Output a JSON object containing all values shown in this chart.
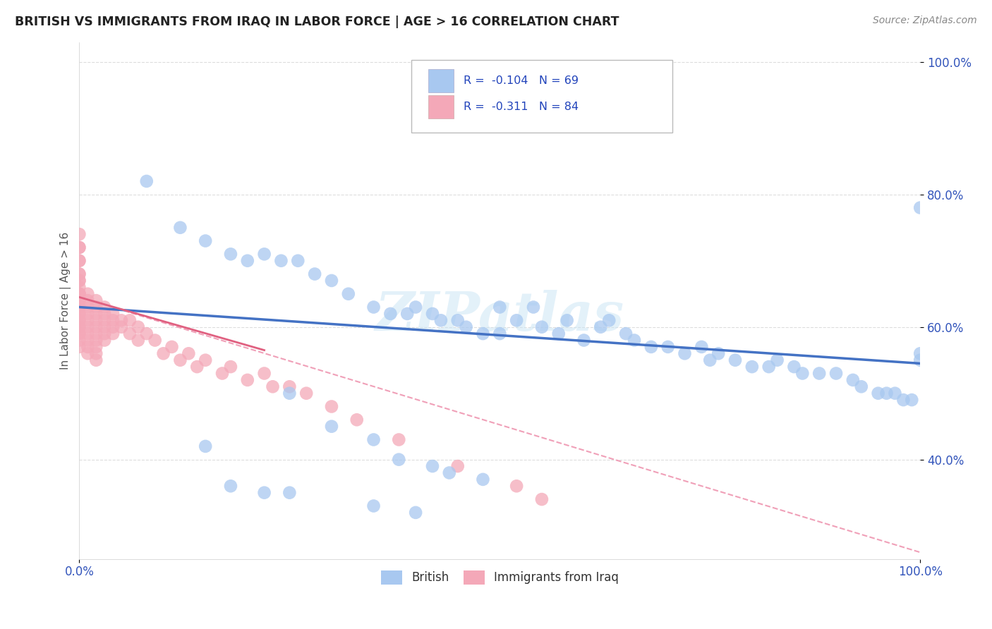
{
  "title": "BRITISH VS IMMIGRANTS FROM IRAQ IN LABOR FORCE | AGE > 16 CORRELATION CHART",
  "source_text": "Source: ZipAtlas.com",
  "ylabel": "In Labor Force | Age > 16",
  "xlim": [
    0.0,
    1.0
  ],
  "ylim": [
    0.25,
    1.03
  ],
  "color_british": "#a8c8f0",
  "color_iraq": "#f4a8b8",
  "color_line_british": "#4472c4",
  "color_line_iraq": "#e06080",
  "color_line_dashed": "#f0a0b8",
  "watermark": "ZIPatlas",
  "background_color": "#ffffff",
  "grid_color": "#dddddd",
  "british_line_x": [
    0.0,
    1.0
  ],
  "british_line_y": [
    0.63,
    0.545
  ],
  "iraq_line_x": [
    0.0,
    0.22
  ],
  "iraq_line_y": [
    0.645,
    0.565
  ],
  "dashed_line_x": [
    0.0,
    1.0
  ],
  "dashed_line_y": [
    0.645,
    0.26
  ],
  "british_scatter_x": [
    0.08,
    0.12,
    0.15,
    0.18,
    0.2,
    0.22,
    0.24,
    0.26,
    0.28,
    0.3,
    0.32,
    0.35,
    0.37,
    0.39,
    0.4,
    0.42,
    0.43,
    0.45,
    0.46,
    0.48,
    0.5,
    0.5,
    0.52,
    0.54,
    0.55,
    0.57,
    0.58,
    0.6,
    0.62,
    0.63,
    0.65,
    0.66,
    0.68,
    0.7,
    0.72,
    0.74,
    0.75,
    0.76,
    0.78,
    0.8,
    0.82,
    0.83,
    0.85,
    0.86,
    0.88,
    0.9,
    0.92,
    0.93,
    0.95,
    0.96,
    0.97,
    0.98,
    0.99,
    1.0,
    1.0,
    1.0,
    0.25,
    0.3,
    0.35,
    0.15,
    0.38,
    0.42,
    0.44,
    0.48,
    0.18,
    0.22,
    0.25,
    0.35,
    0.4
  ],
  "british_scatter_y": [
    0.82,
    0.75,
    0.73,
    0.71,
    0.7,
    0.71,
    0.7,
    0.7,
    0.68,
    0.67,
    0.65,
    0.63,
    0.62,
    0.62,
    0.63,
    0.62,
    0.61,
    0.61,
    0.6,
    0.59,
    0.59,
    0.63,
    0.61,
    0.63,
    0.6,
    0.59,
    0.61,
    0.58,
    0.6,
    0.61,
    0.59,
    0.58,
    0.57,
    0.57,
    0.56,
    0.57,
    0.55,
    0.56,
    0.55,
    0.54,
    0.54,
    0.55,
    0.54,
    0.53,
    0.53,
    0.53,
    0.52,
    0.51,
    0.5,
    0.5,
    0.5,
    0.49,
    0.49,
    0.56,
    0.78,
    0.55,
    0.5,
    0.45,
    0.43,
    0.42,
    0.4,
    0.39,
    0.38,
    0.37,
    0.36,
    0.35,
    0.35,
    0.33,
    0.32
  ],
  "iraq_scatter_x": [
    0.0,
    0.0,
    0.0,
    0.0,
    0.0,
    0.0,
    0.0,
    0.0,
    0.0,
    0.0,
    0.0,
    0.0,
    0.0,
    0.0,
    0.0,
    0.0,
    0.0,
    0.0,
    0.0,
    0.0,
    0.0,
    0.0,
    0.0,
    0.0,
    0.0,
    0.0,
    0.0,
    0.01,
    0.01,
    0.01,
    0.01,
    0.01,
    0.01,
    0.01,
    0.01,
    0.01,
    0.01,
    0.02,
    0.02,
    0.02,
    0.02,
    0.02,
    0.02,
    0.02,
    0.02,
    0.02,
    0.02,
    0.03,
    0.03,
    0.03,
    0.03,
    0.03,
    0.03,
    0.04,
    0.04,
    0.04,
    0.04,
    0.05,
    0.05,
    0.06,
    0.06,
    0.07,
    0.07,
    0.08,
    0.09,
    0.1,
    0.11,
    0.12,
    0.13,
    0.14,
    0.15,
    0.17,
    0.18,
    0.2,
    0.22,
    0.23,
    0.25,
    0.27,
    0.3,
    0.33,
    0.38,
    0.45,
    0.52,
    0.55
  ],
  "iraq_scatter_y": [
    0.74,
    0.72,
    0.7,
    0.68,
    0.67,
    0.66,
    0.65,
    0.64,
    0.63,
    0.62,
    0.61,
    0.6,
    0.59,
    0.72,
    0.7,
    0.68,
    0.67,
    0.65,
    0.64,
    0.63,
    0.62,
    0.61,
    0.6,
    0.59,
    0.58,
    0.57,
    0.65,
    0.65,
    0.64,
    0.63,
    0.62,
    0.61,
    0.6,
    0.59,
    0.58,
    0.57,
    0.56,
    0.64,
    0.63,
    0.62,
    0.61,
    0.6,
    0.59,
    0.58,
    0.57,
    0.56,
    0.55,
    0.63,
    0.62,
    0.61,
    0.6,
    0.59,
    0.58,
    0.62,
    0.61,
    0.6,
    0.59,
    0.61,
    0.6,
    0.61,
    0.59,
    0.6,
    0.58,
    0.59,
    0.58,
    0.56,
    0.57,
    0.55,
    0.56,
    0.54,
    0.55,
    0.53,
    0.54,
    0.52,
    0.53,
    0.51,
    0.51,
    0.5,
    0.48,
    0.46,
    0.43,
    0.39,
    0.36,
    0.34
  ]
}
